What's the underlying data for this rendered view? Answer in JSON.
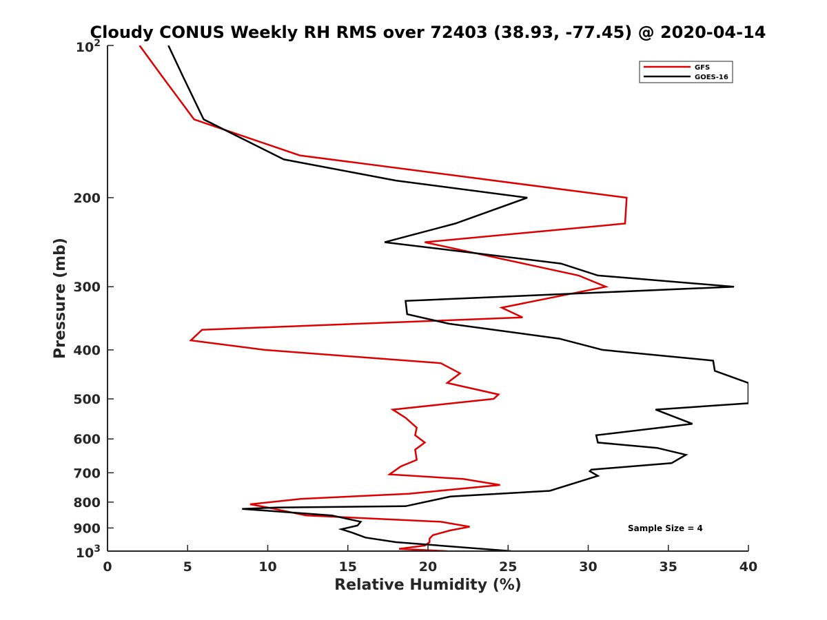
{
  "chart_data": {
    "type": "line",
    "title": "Cloudy CONUS Weekly RH RMS over 72403 (38.93, -77.45) @ 2020-04-14",
    "xlabel": "Relative Humidity (%)",
    "ylabel": "Pressure (mb)",
    "xlim": [
      0,
      40
    ],
    "ylim": [
      100,
      1000
    ],
    "y_scale": "log",
    "y_reversed": true,
    "grid": false,
    "legend_position": "top-right",
    "x_ticks": [
      {
        "value": 0,
        "label": "0"
      },
      {
        "value": 5,
        "label": "5"
      },
      {
        "value": 10,
        "label": "10"
      },
      {
        "value": 15,
        "label": "15"
      },
      {
        "value": 20,
        "label": "20"
      },
      {
        "value": 25,
        "label": "25"
      },
      {
        "value": 30,
        "label": "30"
      },
      {
        "value": 35,
        "label": "35"
      },
      {
        "value": 40,
        "label": "40"
      }
    ],
    "y_ticks": [
      {
        "value": 100,
        "base": "10",
        "exp": "2"
      },
      {
        "value": 200,
        "label": "200"
      },
      {
        "value": 300,
        "label": "300"
      },
      {
        "value": 400,
        "label": "400"
      },
      {
        "value": 500,
        "label": "500"
      },
      {
        "value": 600,
        "label": "600"
      },
      {
        "value": 700,
        "label": "700"
      },
      {
        "value": 800,
        "label": "800"
      },
      {
        "value": 900,
        "label": "900"
      },
      {
        "value": 1000,
        "base": "10",
        "exp": "3"
      }
    ],
    "series": [
      {
        "name": "GFS",
        "color": "#dd0000",
        "points": [
          [
            2.0,
            100
          ],
          [
            3.4,
            115
          ],
          [
            5.4,
            140
          ],
          [
            12.0,
            165
          ],
          [
            32.4,
            200
          ],
          [
            32.3,
            225
          ],
          [
            19.8,
            245
          ],
          [
            29.4,
            285
          ],
          [
            31.1,
            300
          ],
          [
            24.6,
            330
          ],
          [
            25.9,
            345
          ],
          [
            5.9,
            365
          ],
          [
            5.2,
            383
          ],
          [
            9.8,
            400
          ],
          [
            20.8,
            425
          ],
          [
            22.0,
            445
          ],
          [
            21.2,
            465
          ],
          [
            24.4,
            490
          ],
          [
            24.1,
            500
          ],
          [
            17.8,
            525
          ],
          [
            18.6,
            545
          ],
          [
            19.3,
            570
          ],
          [
            19.2,
            590
          ],
          [
            19.8,
            610
          ],
          [
            19.2,
            630
          ],
          [
            19.3,
            660
          ],
          [
            18.3,
            680
          ],
          [
            17.6,
            705
          ],
          [
            22.2,
            720
          ],
          [
            24.5,
            740
          ],
          [
            18.8,
            770
          ],
          [
            12.1,
            788
          ],
          [
            8.9,
            808
          ],
          [
            10.0,
            820
          ],
          [
            12.4,
            850
          ],
          [
            20.8,
            875
          ],
          [
            22.6,
            895
          ],
          [
            21.4,
            910
          ],
          [
            20.3,
            930
          ],
          [
            20.1,
            945
          ],
          [
            20.1,
            960
          ],
          [
            19.8,
            975
          ],
          [
            18.2,
            990
          ],
          [
            21.2,
            1000
          ]
        ]
      },
      {
        "name": "GOES-16",
        "color": "#000000",
        "points": [
          [
            3.8,
            100
          ],
          [
            4.7,
            115
          ],
          [
            6.0,
            140
          ],
          [
            11.0,
            168
          ],
          [
            18.0,
            185
          ],
          [
            26.2,
            200
          ],
          [
            21.7,
            225
          ],
          [
            17.3,
            245
          ],
          [
            28.3,
            270
          ],
          [
            30.6,
            285
          ],
          [
            39.1,
            300
          ],
          [
            18.6,
            320
          ],
          [
            18.7,
            340
          ],
          [
            21.3,
            355
          ],
          [
            28.2,
            380
          ],
          [
            30.9,
            400
          ],
          [
            37.8,
            420
          ],
          [
            37.9,
            440
          ],
          [
            40.0,
            465
          ],
          [
            40.0,
            510
          ],
          [
            34.2,
            525
          ],
          [
            36.5,
            560
          ],
          [
            30.5,
            590
          ],
          [
            30.6,
            610
          ],
          [
            34.3,
            625
          ],
          [
            36.1,
            645
          ],
          [
            35.2,
            670
          ],
          [
            30.2,
            690
          ],
          [
            30.1,
            695
          ],
          [
            30.6,
            710
          ],
          [
            27.6,
            760
          ],
          [
            21.4,
            780
          ],
          [
            18.6,
            815
          ],
          [
            10.5,
            820
          ],
          [
            8.4,
            825
          ],
          [
            14.0,
            850
          ],
          [
            15.8,
            875
          ],
          [
            15.6,
            890
          ],
          [
            14.6,
            905
          ],
          [
            15.3,
            920
          ],
          [
            16.1,
            940
          ],
          [
            18.0,
            960
          ],
          [
            25.2,
            1000
          ]
        ]
      }
    ],
    "annotations": [
      {
        "text": "Sample Size = 4"
      }
    ]
  }
}
